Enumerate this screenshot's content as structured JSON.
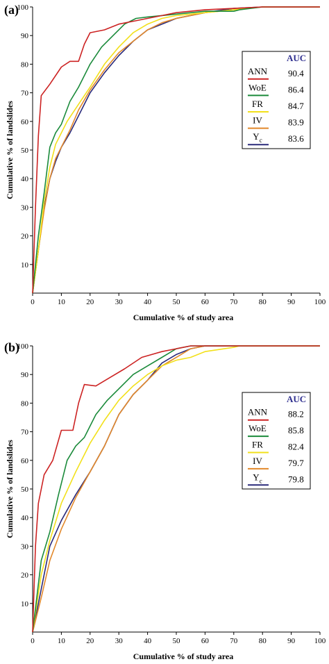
{
  "chart_data": [
    {
      "type": "line",
      "panel_label": "(a)",
      "xlabel": "Cumulative % of study area",
      "ylabel": "Cumulative % of landslides",
      "xlim": [
        0,
        100
      ],
      "ylim": [
        0,
        100
      ],
      "xticks": [
        "0",
        "10",
        "20",
        "30",
        "40",
        "50",
        "60",
        "70",
        "80",
        "90",
        "100"
      ],
      "yticks": [
        "10",
        "20",
        "30",
        "40",
        "50",
        "60",
        "70",
        "80",
        "90",
        "100"
      ],
      "legend_position": "right",
      "legend_header": "AUC",
      "series": [
        {
          "name": "ANN",
          "auc": "90.4",
          "color": "#cc2222",
          "points": [
            [
              0,
              0
            ],
            [
              1,
              30
            ],
            [
              2,
              55
            ],
            [
              3,
              69
            ],
            [
              6,
              73
            ],
            [
              10,
              79
            ],
            [
              13,
              81
            ],
            [
              16,
              81
            ],
            [
              18,
              87
            ],
            [
              20,
              91
            ],
            [
              25,
              92
            ],
            [
              30,
              94
            ],
            [
              35,
              95
            ],
            [
              40,
              96
            ],
            [
              45,
              97
            ],
            [
              50,
              98
            ],
            [
              60,
              99
            ],
            [
              70,
              99.5
            ],
            [
              80,
              100
            ],
            [
              100,
              100
            ]
          ]
        },
        {
          "name": "WoE",
          "auc": "86.4",
          "color": "#1a8a3a",
          "points": [
            [
              0,
              0
            ],
            [
              2,
              20
            ],
            [
              4,
              35
            ],
            [
              6,
              51
            ],
            [
              8,
              56
            ],
            [
              10,
              59
            ],
            [
              13,
              67
            ],
            [
              16,
              72
            ],
            [
              20,
              80
            ],
            [
              24,
              86
            ],
            [
              28,
              90
            ],
            [
              32,
              94
            ],
            [
              36,
              96
            ],
            [
              40,
              96.5
            ],
            [
              45,
              97
            ],
            [
              50,
              97.5
            ],
            [
              60,
              98.5
            ],
            [
              70,
              98.5
            ],
            [
              72,
              99
            ],
            [
              80,
              100
            ],
            [
              100,
              100
            ]
          ]
        },
        {
          "name": "FR",
          "auc": "84.7",
          "color": "#f2e01a",
          "points": [
            [
              0,
              0
            ],
            [
              2,
              15
            ],
            [
              4,
              32
            ],
            [
              6,
              44
            ],
            [
              8,
              52
            ],
            [
              12,
              60
            ],
            [
              16,
              66
            ],
            [
              20,
              72
            ],
            [
              25,
              80
            ],
            [
              30,
              86
            ],
            [
              35,
              91
            ],
            [
              40,
              94
            ],
            [
              45,
              96
            ],
            [
              50,
              97
            ],
            [
              60,
              98
            ],
            [
              70,
              99
            ],
            [
              80,
              100
            ],
            [
              100,
              100
            ]
          ]
        },
        {
          "name": "IV",
          "auc": "83.9",
          "color": "#e2882a",
          "points": [
            [
              0,
              0
            ],
            [
              2,
              15
            ],
            [
              4,
              29
            ],
            [
              6,
              40
            ],
            [
              8,
              47
            ],
            [
              10,
              51
            ],
            [
              13,
              57
            ],
            [
              16,
              64
            ],
            [
              20,
              71
            ],
            [
              25,
              78
            ],
            [
              30,
              84
            ],
            [
              35,
              88
            ],
            [
              40,
              92
            ],
            [
              45,
              94.5
            ],
            [
              50,
              96
            ],
            [
              60,
              98
            ],
            [
              70,
              99
            ],
            [
              80,
              100
            ],
            [
              100,
              100
            ]
          ]
        },
        {
          "name": "Yc",
          "auc": "83.6",
          "color": "#2a2a7a",
          "points": [
            [
              0,
              0
            ],
            [
              2,
              15
            ],
            [
              4,
              30
            ],
            [
              6,
              40
            ],
            [
              8,
              46
            ],
            [
              10,
              51
            ],
            [
              13,
              56
            ],
            [
              16,
              62
            ],
            [
              20,
              70
            ],
            [
              25,
              77
            ],
            [
              30,
              83
            ],
            [
              35,
              88
            ],
            [
              40,
              92
            ],
            [
              45,
              94
            ],
            [
              50,
              96
            ],
            [
              60,
              98
            ],
            [
              70,
              99.5
            ],
            [
              80,
              100
            ],
            [
              100,
              100
            ]
          ]
        }
      ]
    },
    {
      "type": "line",
      "panel_label": "(b)",
      "xlabel": "Cumulative % of study area",
      "ylabel": "Cumulative % of landslides",
      "xlim": [
        0,
        100
      ],
      "ylim": [
        0,
        100
      ],
      "xticks": [
        "0",
        "10",
        "20",
        "30",
        "40",
        "50",
        "60",
        "70",
        "80",
        "90",
        "100"
      ],
      "yticks": [
        "10",
        "20",
        "30",
        "40",
        "50",
        "60",
        "70",
        "80",
        "90",
        "100"
      ],
      "legend_position": "right",
      "legend_header": "AUC",
      "series": [
        {
          "name": "ANN",
          "auc": "88.2",
          "color": "#cc2222",
          "points": [
            [
              0,
              0
            ],
            [
              1,
              30
            ],
            [
              2,
              45
            ],
            [
              4,
              55
            ],
            [
              7,
              60
            ],
            [
              10,
              70.5
            ],
            [
              14,
              70.5
            ],
            [
              16,
              80
            ],
            [
              18,
              86.5
            ],
            [
              22,
              86
            ],
            [
              27,
              89
            ],
            [
              32,
              92
            ],
            [
              38,
              96
            ],
            [
              45,
              98
            ],
            [
              50,
              99
            ],
            [
              55,
              100
            ],
            [
              100,
              100
            ]
          ]
        },
        {
          "name": "WoE",
          "auc": "85.8",
          "color": "#1a8a3a",
          "points": [
            [
              0,
              0
            ],
            [
              3,
              25
            ],
            [
              6,
              35
            ],
            [
              9,
              48
            ],
            [
              12,
              60
            ],
            [
              15,
              65
            ],
            [
              18,
              68
            ],
            [
              22,
              76
            ],
            [
              26,
              81
            ],
            [
              30,
              85
            ],
            [
              35,
              90
            ],
            [
              40,
              93
            ],
            [
              45,
              96
            ],
            [
              50,
              99
            ],
            [
              55,
              100
            ],
            [
              100,
              100
            ]
          ]
        },
        {
          "name": "FR",
          "auc": "82.4",
          "color": "#f2e01a",
          "points": [
            [
              0,
              0
            ],
            [
              3,
              20
            ],
            [
              6,
              32
            ],
            [
              10,
              45
            ],
            [
              15,
              56
            ],
            [
              20,
              66
            ],
            [
              25,
              74
            ],
            [
              30,
              81
            ],
            [
              35,
              86
            ],
            [
              40,
              90
            ],
            [
              45,
              93
            ],
            [
              50,
              95
            ],
            [
              55,
              96
            ],
            [
              60,
              98
            ],
            [
              70,
              99.5
            ],
            [
              72,
              100
            ],
            [
              100,
              100
            ]
          ]
        },
        {
          "name": "IV",
          "auc": "79.7",
          "color": "#e2882a",
          "points": [
            [
              0,
              0
            ],
            [
              3,
              12
            ],
            [
              6,
              25
            ],
            [
              10,
              36
            ],
            [
              15,
              47
            ],
            [
              20,
              56
            ],
            [
              25,
              65
            ],
            [
              30,
              76
            ],
            [
              35,
              83
            ],
            [
              40,
              88
            ],
            [
              45,
              93
            ],
            [
              50,
              96
            ],
            [
              55,
              99
            ],
            [
              60,
              100
            ],
            [
              100,
              100
            ]
          ]
        },
        {
          "name": "Yc",
          "auc": "79.8",
          "color": "#2a2a7a",
          "points": [
            [
              0,
              0
            ],
            [
              3,
              15
            ],
            [
              6,
              30
            ],
            [
              10,
              39
            ],
            [
              15,
              48
            ],
            [
              20,
              56
            ],
            [
              25,
              65
            ],
            [
              30,
              76
            ],
            [
              35,
              83
            ],
            [
              40,
              88
            ],
            [
              45,
              94
            ],
            [
              50,
              97
            ],
            [
              55,
              99
            ],
            [
              60,
              100
            ],
            [
              100,
              100
            ]
          ]
        }
      ]
    }
  ]
}
